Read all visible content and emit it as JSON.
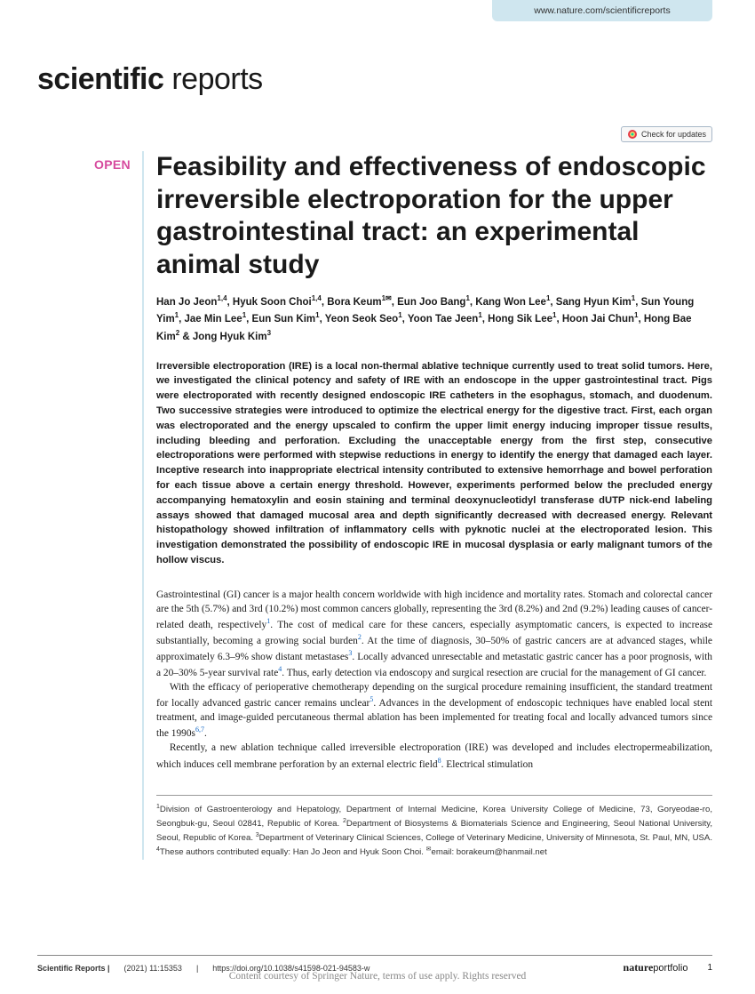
{
  "header": {
    "journal_url": "www.nature.com/scientificreports",
    "journal_name_bold": "scientific",
    "journal_name_light": " reports",
    "updates_label": "Check for updates",
    "open_label": "OPEN"
  },
  "title": "Feasibility and effectiveness of endoscopic irreversible electroporation for the upper gastrointestinal tract: an experimental animal study",
  "authors_html": "Han Jo Jeon<sup>1,4</sup>, Hyuk Soon Choi<sup>1,4</sup>, Bora Keum<sup>1✉</sup>, Eun Joo Bang<sup>1</sup>, Kang Won Lee<sup>1</sup>, Sang Hyun Kim<sup>1</sup>, Sun Young Yim<sup>1</sup>, Jae Min Lee<sup>1</sup>, Eun Sun Kim<sup>1</sup>, Yeon Seok Seo<sup>1</sup>, Yoon Tae Jeen<sup>1</sup>, Hong Sik Lee<sup>1</sup>, Hoon Jai Chun<sup>1</sup>, Hong Bae Kim<sup>2</sup> & Jong Hyuk Kim<sup>3</sup>",
  "abstract": "Irreversible electroporation (IRE) is a local non-thermal ablative technique currently used to treat solid tumors. Here, we investigated the clinical potency and safety of IRE with an endoscope in the upper gastrointestinal tract. Pigs were electroporated with recently designed endoscopic IRE catheters in the esophagus, stomach, and duodenum. Two successive strategies were introduced to optimize the electrical energy for the digestive tract. First, each organ was electroporated and the energy upscaled to confirm the upper limit energy inducing improper tissue results, including bleeding and perforation. Excluding the unacceptable energy from the first step, consecutive electroporations were performed with stepwise reductions in energy to identify the energy that damaged each layer. Inceptive research into inappropriate electrical intensity contributed to extensive hemorrhage and bowel perforation for each tissue above a certain energy threshold. However, experiments performed below the precluded energy accompanying hematoxylin and eosin staining and terminal deoxynucleotidyl transferase dUTP nick-end labeling assays showed that damaged mucosal area and depth significantly decreased with decreased energy. Relevant histopathology showed infiltration of inflammatory cells with pyknotic nuclei at the electroporated lesion. This investigation demonstrated the possibility of endoscopic IRE in mucosal dysplasia or early malignant tumors of the hollow viscus.",
  "body": {
    "p1": "Gastrointestinal (GI) cancer is a major health concern worldwide with high incidence and mortality rates. Stomach and colorectal cancer are the 5th (5.7%) and 3rd (10.2%) most common cancers globally, representing the 3rd (8.2%) and 2nd (9.2%) leading causes of cancer-related death, respectively",
    "p1_ref1": "1",
    "p1_cont": ". The cost of medical care for these cancers, especially asymptomatic cancers, is expected to increase substantially, becoming a growing social burden",
    "p1_ref2": "2",
    "p1_cont2": ". At the time of diagnosis, 30–50% of gastric cancers are at advanced stages, while approximately 6.3–9% show distant metastases",
    "p1_ref3": "3",
    "p1_cont3": ". Locally advanced unresectable and metastatic gastric cancer has a poor prognosis, with a 20–30% 5-year survival rate",
    "p1_ref4": "4",
    "p1_cont4": ". Thus, early detection via endoscopy and surgical resection are crucial for the management of GI cancer.",
    "p2": "With the efficacy of perioperative chemotherapy depending on the surgical procedure remaining insufficient, the standard treatment for locally advanced gastric cancer remains unclear",
    "p2_ref5": "5",
    "p2_cont": ". Advances in the development of endoscopic techniques have enabled local stent treatment, and image-guided percutaneous thermal ablation has been implemented for treating focal and locally advanced tumors since the 1990s",
    "p2_ref67": "6,7",
    "p2_cont2": ".",
    "p3": "Recently, a new ablation technique called irreversible electroporation (IRE) was developed and includes electropermeabilization, which induces cell membrane perforation by an external electric field",
    "p3_ref8": "8",
    "p3_cont": ". Electrical stimulation"
  },
  "affiliations_html": "<sup>1</sup>Division of Gastroenterology and Hepatology, Department of Internal Medicine, Korea University College of Medicine, 73, Goryeodae-ro, Seongbuk-gu, Seoul 02841, Republic of Korea. <sup>2</sup>Department of Biosystems & Biomaterials Science and Engineering, Seoul National University, Seoul, Republic of Korea. <sup>3</sup>Department of Veterinary Clinical Sciences, College of Veterinary Medicine, University of Minnesota, St. Paul, MN, USA. <sup>4</sup>These authors contributed equally: Han Jo Jeon and Hyuk Soon Choi. <sup>✉</sup>email: borakeum@hanmail.net",
  "footer": {
    "journal": "Scientific Reports |",
    "citation": "(2021) 11:15353",
    "sep": "|",
    "doi": "https://doi.org/10.1038/s41598-021-94583-w",
    "publisher_bold": "nature",
    "publisher_light": "portfolio",
    "page": "1"
  },
  "watermark": "Content courtesy of Springer Nature, terms of use apply. Rights reserved",
  "colors": {
    "accent_blue": "#cfe6ef",
    "open_pink": "#d64a9e",
    "ref_blue": "#1066c4"
  }
}
